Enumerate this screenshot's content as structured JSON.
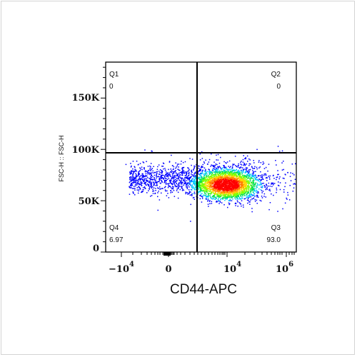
{
  "chart_data": {
    "type": "scatter",
    "title": "",
    "xlabel": "CD44-APC",
    "ylabel": "FSC-H :: FSC-H",
    "xscale": "biexponential",
    "x_ticks": [
      {
        "base": "−10",
        "exp": "4"
      },
      {
        "base": "0",
        "exp": ""
      },
      {
        "base": "10",
        "exp": "4"
      },
      {
        "base": "10",
        "exp": "6"
      }
    ],
    "y_ticks": [
      "0",
      "50K",
      "100K",
      "150K"
    ],
    "y_tick_values": [
      0,
      50000,
      100000,
      150000
    ],
    "ylim": [
      0,
      185000
    ],
    "quadrant_gate": {
      "x": "≈500",
      "y": 96000
    },
    "quadrants": [
      {
        "name": "Q1",
        "value": "0",
        "position": "top-left"
      },
      {
        "name": "Q2",
        "value": "0",
        "position": "top-right"
      },
      {
        "name": "Q3",
        "value": "93.0",
        "position": "bottom-right"
      },
      {
        "name": "Q4",
        "value": "6.97",
        "position": "bottom-left"
      }
    ],
    "population": {
      "x_center": "≈10^4",
      "y_center": 66000,
      "y_spread": [
        48000,
        85000
      ]
    },
    "colors": {
      "density_low": "#0000ff",
      "density_mid": "#00ff00",
      "density_high": "#ff0000",
      "gate_line": "#000000"
    }
  }
}
